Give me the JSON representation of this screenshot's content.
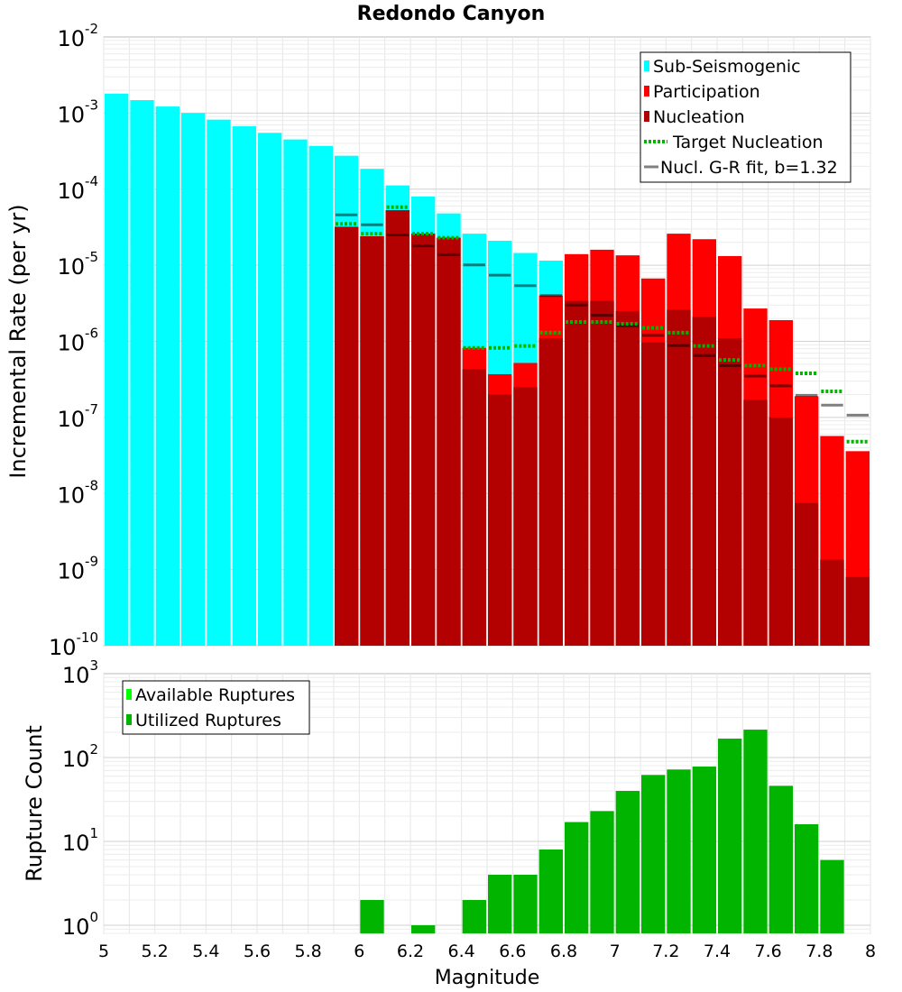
{
  "title": "Redondo Canyon",
  "chart_data": [
    {
      "type": "bar",
      "panel": "top",
      "ylabel": "Incremental Rate (per yr)",
      "yscale": "log",
      "ylim": [
        1e-10,
        0.01
      ],
      "xlim": [
        5,
        8
      ],
      "grid": true,
      "legend_position": "top-right",
      "legend": [
        {
          "label": "Sub-Seismogenic",
          "color": "#00ffff",
          "kind": "box"
        },
        {
          "label": "Participation",
          "color": "#ff0000",
          "kind": "box"
        },
        {
          "label": "Nucleation",
          "color": "#b30000",
          "kind": "box"
        },
        {
          "label": "Target Nucleation",
          "color": "#00b400",
          "kind": "dotted"
        },
        {
          "label": "Nucl. G-R fit, b=1.32",
          "color": "#808080",
          "kind": "line"
        }
      ],
      "x": [
        5.05,
        5.15,
        5.25,
        5.35,
        5.45,
        5.55,
        5.65,
        5.75,
        5.85,
        5.95,
        6.05,
        6.15,
        6.25,
        6.35,
        6.45,
        6.55,
        6.65,
        6.75,
        6.85,
        6.95,
        7.05,
        7.15,
        7.25,
        7.35,
        7.45,
        7.55,
        7.65,
        7.75,
        7.85,
        7.95
      ],
      "series": [
        {
          "name": "Sub-Seismogenic",
          "color": "#00ffff",
          "values": [
            0.0018,
            0.00148,
            0.00122,
            0.001,
            0.00082,
            0.00067,
            0.00055,
            0.00045,
            0.00037,
            0.000275,
            0.000185,
            0.000112,
            8e-05,
            4.8e-05,
            2.6e-05,
            2.1e-05,
            1.45e-05,
            1.15e-05,
            null,
            null,
            null,
            null,
            null,
            null,
            null,
            null,
            null,
            null,
            null,
            null
          ]
        },
        {
          "name": "Participation",
          "color": "#ff0000",
          "values": [
            null,
            null,
            null,
            null,
            null,
            null,
            null,
            null,
            null,
            3.2e-05,
            2.4e-05,
            5.3e-05,
            2.6e-05,
            2.3e-05,
            8.2e-07,
            3.7e-07,
            5.2e-07,
            4e-06,
            1.4e-05,
            1.6e-05,
            1.35e-05,
            6.7e-06,
            2.6e-05,
            2.2e-05,
            1.32e-05,
            2.7e-06,
            1.9e-06,
            1.9e-07,
            5.7e-08,
            3.6e-08
          ]
        },
        {
          "name": "Nucleation",
          "color": "#b30000",
          "values": [
            null,
            null,
            null,
            null,
            null,
            null,
            null,
            null,
            null,
            3.2e-05,
            2.4e-05,
            5.3e-05,
            2.6e-05,
            2.3e-05,
            4.3e-07,
            2e-07,
            2.5e-07,
            1.1e-06,
            3.4e-06,
            3.4e-06,
            2.5e-06,
            9.7e-07,
            2.6e-06,
            2.1e-06,
            1.1e-06,
            1.7e-07,
            1e-07,
            7.5e-09,
            1.35e-09,
            8e-10
          ]
        },
        {
          "name": "Target Nucleation",
          "color": "#00b400",
          "values": [
            null,
            null,
            null,
            null,
            null,
            null,
            null,
            null,
            null,
            3.5e-05,
            2.6e-05,
            5.8e-05,
            2.6e-05,
            2.3e-05,
            8.2e-07,
            8.2e-07,
            8.7e-07,
            1.3e-06,
            1.8e-06,
            1.8e-06,
            1.7e-06,
            1.5e-06,
            1.3e-06,
            8.7e-07,
            5.7e-07,
            4.8e-07,
            4.3e-07,
            3.8e-07,
            2.2e-07,
            4.8e-08
          ]
        },
        {
          "name": "Nucl. G-R fit, b=1.32",
          "color": "#808080",
          "values": [
            null,
            null,
            null,
            null,
            null,
            null,
            null,
            null,
            null,
            4.6e-05,
            3.4e-05,
            2.5e-05,
            1.8e-05,
            1.38e-05,
            1.01e-05,
            7.4e-06,
            5.4e-06,
            4e-06,
            3e-06,
            2.2e-06,
            1.6e-06,
            1.2e-06,
            8.8e-07,
            6.5e-07,
            4.8e-07,
            3.5e-07,
            2.6e-07,
            1.95e-07,
            1.45e-07,
            1.07e-07
          ]
        }
      ],
      "yticks": [
        {
          "base": "10",
          "exp": "-2"
        },
        {
          "base": "10",
          "exp": "-3"
        },
        {
          "base": "10",
          "exp": "-4"
        },
        {
          "base": "10",
          "exp": "-5"
        },
        {
          "base": "10",
          "exp": "-6"
        },
        {
          "base": "10",
          "exp": "-7"
        },
        {
          "base": "10",
          "exp": "-8"
        },
        {
          "base": "10",
          "exp": "-9"
        },
        {
          "base": "10",
          "exp": "-10"
        }
      ]
    },
    {
      "type": "bar",
      "panel": "bottom",
      "xlabel": "Magnitude",
      "ylabel": "Rupture Count",
      "yscale": "log",
      "ylim": [
        0.8,
        1000
      ],
      "xlim": [
        5,
        8
      ],
      "grid": true,
      "legend_position": "top-left",
      "legend": [
        {
          "label": "Available Ruptures",
          "color": "#00ff00",
          "kind": "box"
        },
        {
          "label": "Utilized Ruptures",
          "color": "#00b400",
          "kind": "box"
        }
      ],
      "x": [
        5.05,
        5.15,
        5.25,
        5.35,
        5.45,
        5.55,
        5.65,
        5.75,
        5.85,
        5.95,
        6.05,
        6.15,
        6.25,
        6.35,
        6.45,
        6.55,
        6.65,
        6.75,
        6.85,
        6.95,
        7.05,
        7.15,
        7.25,
        7.35,
        7.45,
        7.55,
        7.65,
        7.75,
        7.85,
        7.95
      ],
      "series": [
        {
          "name": "Utilized Ruptures",
          "color": "#00b400",
          "values": [
            null,
            null,
            null,
            null,
            null,
            null,
            null,
            null,
            null,
            null,
            2,
            null,
            1,
            null,
            2,
            4,
            4,
            8,
            17,
            23,
            40,
            62,
            72,
            78,
            168,
            215,
            46,
            16,
            6,
            null
          ]
        }
      ],
      "yticks": [
        {
          "base": "10",
          "exp": "3"
        },
        {
          "base": "10",
          "exp": "2"
        },
        {
          "base": "10",
          "exp": "1"
        },
        {
          "base": "10",
          "exp": "0"
        }
      ],
      "xticks": [
        "5",
        "5.2",
        "5.4",
        "5.6",
        "5.8",
        "6",
        "6.2",
        "6.4",
        "6.6",
        "6.8",
        "7",
        "7.2",
        "7.4",
        "7.6",
        "7.8",
        "8"
      ]
    }
  ]
}
